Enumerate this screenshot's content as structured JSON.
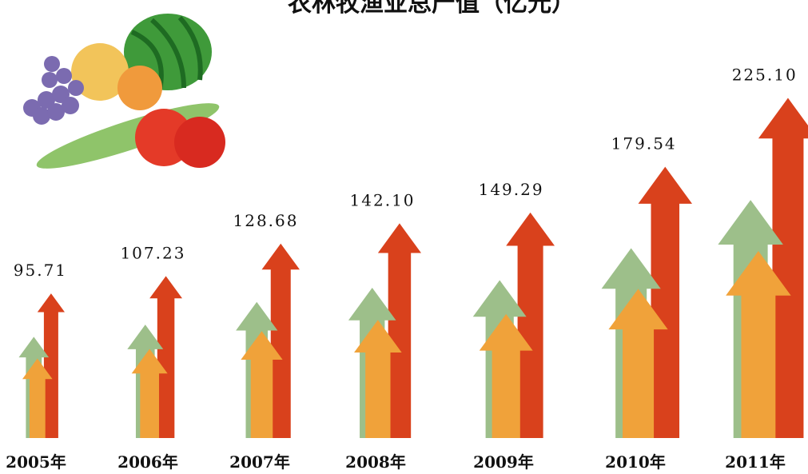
{
  "chart_data": {
    "type": "arrow-bar",
    "title": "农林牧渔业总产值（亿元）",
    "categories": [
      "2005年",
      "2006年",
      "2007年",
      "2008年",
      "2009年",
      "2010年",
      "2011年"
    ],
    "values": [
      95.71,
      107.23,
      128.68,
      142.1,
      149.29,
      179.54,
      225.1
    ],
    "value_labels": [
      "95.71",
      "107.23",
      "128.68",
      "142.10",
      "149.29",
      "179.54",
      "225.10"
    ],
    "colors": [
      "#d9411c",
      "#9dbf8a",
      "#f0a23a"
    ]
  }
}
